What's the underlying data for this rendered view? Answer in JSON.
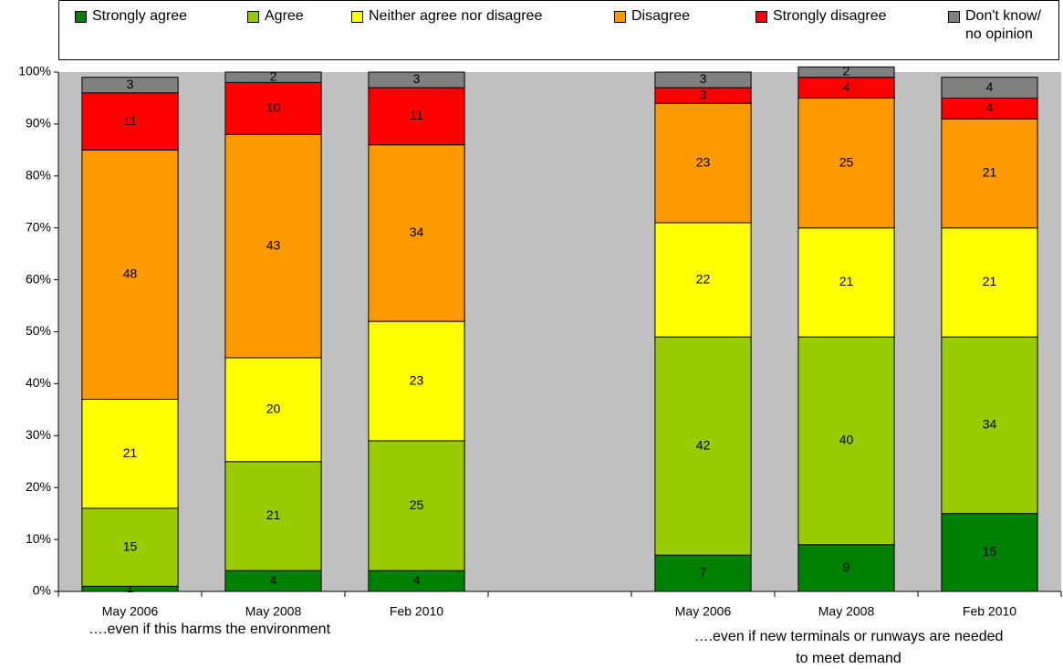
{
  "chart_data": {
    "type": "stacked_bar",
    "categories": [
      "May 2006",
      "May 2008",
      "Feb 2010",
      null,
      "May 2006",
      "May 2008",
      "Feb 2010"
    ],
    "series": [
      {
        "name": "Strongly agree",
        "color": "#008000",
        "values": [
          1,
          4,
          4,
          null,
          7,
          9,
          15
        ]
      },
      {
        "name": "Agree",
        "color": "#99cc00",
        "values": [
          15,
          21,
          25,
          null,
          42,
          40,
          34
        ]
      },
      {
        "name": "Neither agree nor disagree",
        "color": "#ffff00",
        "values": [
          21,
          20,
          23,
          null,
          22,
          21,
          21
        ]
      },
      {
        "name": "Disagree",
        "color": "#ff9900",
        "values": [
          48,
          43,
          34,
          null,
          23,
          25,
          21
        ]
      },
      {
        "name": "Strongly disagree",
        "color": "#ff0000",
        "values": [
          11,
          10,
          11,
          null,
          3,
          4,
          4
        ]
      },
      {
        "name": "Don't know/ no opinion",
        "color": "#808080",
        "values": [
          3,
          2,
          3,
          null,
          3,
          2,
          4
        ]
      }
    ],
    "ylim": [
      0,
      100
    ],
    "yticks": [
      {
        "value": 0,
        "label": "0%"
      },
      {
        "value": 10,
        "label": "10%"
      },
      {
        "value": 20,
        "label": "20%"
      },
      {
        "value": 30,
        "label": "30%"
      },
      {
        "value": 40,
        "label": "40%"
      },
      {
        "value": 50,
        "label": "50%"
      },
      {
        "value": 60,
        "label": "60%"
      },
      {
        "value": 70,
        "label": "70%"
      },
      {
        "value": 80,
        "label": "80%"
      },
      {
        "value": 90,
        "label": "90%"
      },
      {
        "value": 100,
        "label": "100%"
      }
    ],
    "grid": false,
    "legend": "top",
    "annotations": [
      "….even if this harms the environment",
      "….even if new terminals or runways are needed to meet demand"
    ]
  }
}
